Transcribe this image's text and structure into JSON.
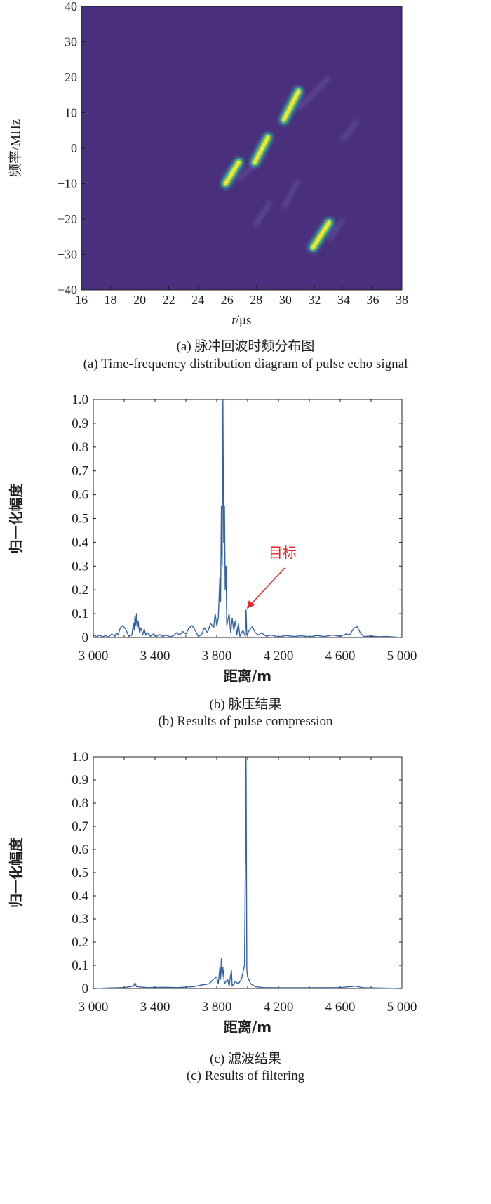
{
  "chart_data": [
    {
      "type": "heatmap",
      "panel": "a",
      "xlabel_italic": "t",
      "xlabel_unit": "/μs",
      "ylabel": "频率/MHz",
      "xlim": [
        16,
        38
      ],
      "ylim": [
        -40,
        40
      ],
      "xticks": [
        "16",
        "18",
        "20",
        "22",
        "24",
        "26",
        "28",
        "30",
        "32",
        "34",
        "36",
        "38"
      ],
      "yticks": [
        "40",
        "30",
        "20",
        "10",
        "0",
        "−10",
        "−20",
        "−30",
        "−40"
      ],
      "background_color": "#4a2f7c",
      "strong_chirps": [
        {
          "t": [
            25.9,
            26.8
          ],
          "f": [
            -10,
            -4
          ]
        },
        {
          "t": [
            27.9,
            28.8
          ],
          "f": [
            -4,
            3
          ]
        },
        {
          "t": [
            29.9,
            30.9
          ],
          "f": [
            8,
            16
          ]
        },
        {
          "t": [
            31.9,
            33.0
          ],
          "f": [
            -28,
            -21
          ]
        }
      ],
      "faint_chirps": [
        {
          "t": [
            30.9,
            33.0
          ],
          "f": [
            11,
            20
          ]
        },
        {
          "t": [
            33.9,
            35.0
          ],
          "f": [
            2,
            8
          ]
        },
        {
          "t": [
            27.9,
            29.0
          ],
          "f": [
            -22,
            -15
          ]
        },
        {
          "t": [
            29.9,
            30.9
          ],
          "f": [
            -17,
            -9
          ]
        },
        {
          "t": [
            33.0,
            34.0
          ],
          "f": [
            -26,
            -20
          ]
        },
        {
          "t": [
            26.8,
            28.0
          ],
          "f": [
            -9,
            -4
          ]
        }
      ],
      "caption_cn": "(a) 脉冲回波时频分布图",
      "caption_en": "(a) Time-frequency distribution diagram of pulse echo signal"
    },
    {
      "type": "line",
      "panel": "b",
      "xlabel": "距离/m",
      "ylabel": "归一化幅度",
      "xlim": [
        3000,
        5000
      ],
      "ylim": [
        0,
        1
      ],
      "xticks": [
        {
          "v": 3000,
          "label": "3 000"
        },
        {
          "v": 3400,
          "label": "3 400"
        },
        {
          "v": 3800,
          "label": "3 800"
        },
        {
          "v": 4200,
          "label": "4 200"
        },
        {
          "v": 4600,
          "label": "4 600"
        },
        {
          "v": 5000,
          "label": "5 000"
        }
      ],
      "yticks": [
        {
          "v": 1,
          "label": "1.0"
        },
        {
          "v": 0.9,
          "label": "0.9"
        },
        {
          "v": 0.8,
          "label": "0.8"
        },
        {
          "v": 0.7,
          "label": "0.7"
        },
        {
          "v": 0.6,
          "label": "0.6"
        },
        {
          "v": 0.5,
          "label": "0.5"
        },
        {
          "v": 0.4,
          "label": "0.4"
        },
        {
          "v": 0.3,
          "label": "0.3"
        },
        {
          "v": 0.2,
          "label": "0.2"
        },
        {
          "v": 0.1,
          "label": "0.1"
        },
        {
          "v": 0,
          "label": "0"
        }
      ],
      "line_color": "#3462a8",
      "annotation": {
        "text": "目标",
        "x": 3990,
        "y": 0.115,
        "color": "#e8262b"
      },
      "points": [
        [
          3000,
          0.005
        ],
        [
          3010,
          0.012
        ],
        [
          3020,
          0.002
        ],
        [
          3040,
          0.01
        ],
        [
          3060,
          0.003
        ],
        [
          3080,
          0.008
        ],
        [
          3100,
          0.002
        ],
        [
          3120,
          0.015
        ],
        [
          3140,
          0.005
        ],
        [
          3150,
          0.02
        ],
        [
          3160,
          0.01
        ],
        [
          3175,
          0.04
        ],
        [
          3190,
          0.05
        ],
        [
          3210,
          0.035
        ],
        [
          3230,
          0.005
        ],
        [
          3250,
          0.01
        ],
        [
          3260,
          0.06
        ],
        [
          3265,
          0.03
        ],
        [
          3270,
          0.09
        ],
        [
          3275,
          0.05
        ],
        [
          3280,
          0.1
        ],
        [
          3285,
          0.04
        ],
        [
          3290,
          0.07
        ],
        [
          3300,
          0.02
        ],
        [
          3310,
          0.04
        ],
        [
          3320,
          0.01
        ],
        [
          3330,
          0.035
        ],
        [
          3340,
          0.01
        ],
        [
          3350,
          0.02
        ],
        [
          3370,
          0.005
        ],
        [
          3390,
          0.015
        ],
        [
          3410,
          0.005
        ],
        [
          3430,
          0.012
        ],
        [
          3450,
          0.004
        ],
        [
          3470,
          0.01
        ],
        [
          3500,
          0.003
        ],
        [
          3520,
          0.008
        ],
        [
          3540,
          0.02
        ],
        [
          3560,
          0.01
        ],
        [
          3580,
          0.025
        ],
        [
          3600,
          0.015
        ],
        [
          3620,
          0.04
        ],
        [
          3640,
          0.05
        ],
        [
          3660,
          0.03
        ],
        [
          3680,
          0.005
        ],
        [
          3700,
          0.01
        ],
        [
          3720,
          0.04
        ],
        [
          3740,
          0.02
        ],
        [
          3760,
          0.06
        ],
        [
          3780,
          0.04
        ],
        [
          3790,
          0.1
        ],
        [
          3800,
          0.05
        ],
        [
          3810,
          0.08
        ],
        [
          3820,
          0.25
        ],
        [
          3825,
          0.15
        ],
        [
          3830,
          0.55
        ],
        [
          3835,
          0.3
        ],
        [
          3840,
          1.0
        ],
        [
          3845,
          0.4
        ],
        [
          3850,
          0.55
        ],
        [
          3855,
          0.2
        ],
        [
          3860,
          0.3
        ],
        [
          3865,
          0.05
        ],
        [
          3880,
          0.1
        ],
        [
          3890,
          0.02
        ],
        [
          3900,
          0.08
        ],
        [
          3910,
          0.03
        ],
        [
          3920,
          0.07
        ],
        [
          3930,
          0.01
        ],
        [
          3940,
          0.06
        ],
        [
          3950,
          0.005
        ],
        [
          3970,
          0.03
        ],
        [
          3985,
          0.005
        ],
        [
          3990,
          0.115
        ],
        [
          3995,
          0.01
        ],
        [
          4010,
          0.03
        ],
        [
          4030,
          0.045
        ],
        [
          4050,
          0.02
        ],
        [
          4070,
          0.01
        ],
        [
          4090,
          0.02
        ],
        [
          4120,
          0.005
        ],
        [
          4150,
          0.01
        ],
        [
          4200,
          0.003
        ],
        [
          4250,
          0.008
        ],
        [
          4300,
          0.004
        ],
        [
          4350,
          0.007
        ],
        [
          4400,
          0.003
        ],
        [
          4450,
          0.008
        ],
        [
          4500,
          0.004
        ],
        [
          4550,
          0.01
        ],
        [
          4600,
          0.005
        ],
        [
          4640,
          0.015
        ],
        [
          4660,
          0.01
        ],
        [
          4690,
          0.04
        ],
        [
          4710,
          0.045
        ],
        [
          4730,
          0.02
        ],
        [
          4750,
          0.004
        ],
        [
          4800,
          0.006
        ],
        [
          4850,
          0.003
        ],
        [
          4900,
          0.004
        ],
        [
          5000,
          0.0
        ]
      ],
      "caption_cn": "(b) 脉压结果",
      "caption_en": "(b) Results of pulse compression"
    },
    {
      "type": "line",
      "panel": "c",
      "xlabel": "距离/m",
      "ylabel": "归一化幅度",
      "xlim": [
        3000,
        5000
      ],
      "ylim": [
        0,
        1
      ],
      "xticks": [
        {
          "v": 3000,
          "label": "3 000"
        },
        {
          "v": 3400,
          "label": "3 400"
        },
        {
          "v": 3800,
          "label": "3 800"
        },
        {
          "v": 4200,
          "label": "4 200"
        },
        {
          "v": 4600,
          "label": "4 600"
        },
        {
          "v": 5000,
          "label": "5 000"
        }
      ],
      "yticks": [
        {
          "v": 1,
          "label": "1.0"
        },
        {
          "v": 0.9,
          "label": "0.9"
        },
        {
          "v": 0.8,
          "label": "0.8"
        },
        {
          "v": 0.7,
          "label": "0.7"
        },
        {
          "v": 0.6,
          "label": "0.6"
        },
        {
          "v": 0.5,
          "label": "0.5"
        },
        {
          "v": 0.4,
          "label": "0.4"
        },
        {
          "v": 0.3,
          "label": "0.3"
        },
        {
          "v": 0.2,
          "label": "0.2"
        },
        {
          "v": 0.1,
          "label": "0.1"
        },
        {
          "v": 0,
          "label": "0"
        }
      ],
      "line_color": "#3462a8",
      "points": [
        [
          3000,
          0
        ],
        [
          3100,
          0.002
        ],
        [
          3200,
          0.004
        ],
        [
          3260,
          0.01
        ],
        [
          3270,
          0.025
        ],
        [
          3280,
          0.008
        ],
        [
          3350,
          0.004
        ],
        [
          3450,
          0.005
        ],
        [
          3550,
          0.004
        ],
        [
          3650,
          0.008
        ],
        [
          3700,
          0.015
        ],
        [
          3750,
          0.02
        ],
        [
          3780,
          0.04
        ],
        [
          3800,
          0.05
        ],
        [
          3810,
          0.02
        ],
        [
          3820,
          0.09
        ],
        [
          3825,
          0.04
        ],
        [
          3830,
          0.13
        ],
        [
          3835,
          0.05
        ],
        [
          3840,
          0.09
        ],
        [
          3850,
          0.02
        ],
        [
          3870,
          0.04
        ],
        [
          3880,
          0.01
        ],
        [
          3895,
          0.08
        ],
        [
          3900,
          0.01
        ],
        [
          3920,
          0.03
        ],
        [
          3940,
          0.02
        ],
        [
          3960,
          0.04
        ],
        [
          3980,
          0.1
        ],
        [
          3985,
          0.5
        ],
        [
          3990,
          1.0
        ],
        [
          3995,
          0.08
        ],
        [
          4000,
          0.05
        ],
        [
          4020,
          0.02
        ],
        [
          4050,
          0.008
        ],
        [
          4100,
          0.004
        ],
        [
          4200,
          0.003
        ],
        [
          4400,
          0.003
        ],
        [
          4600,
          0.004
        ],
        [
          4700,
          0.01
        ],
        [
          4750,
          0.003
        ],
        [
          5000,
          0
        ]
      ],
      "caption_cn": "(c) 滤波结果",
      "caption_en": "(c) Results of filtering"
    }
  ]
}
